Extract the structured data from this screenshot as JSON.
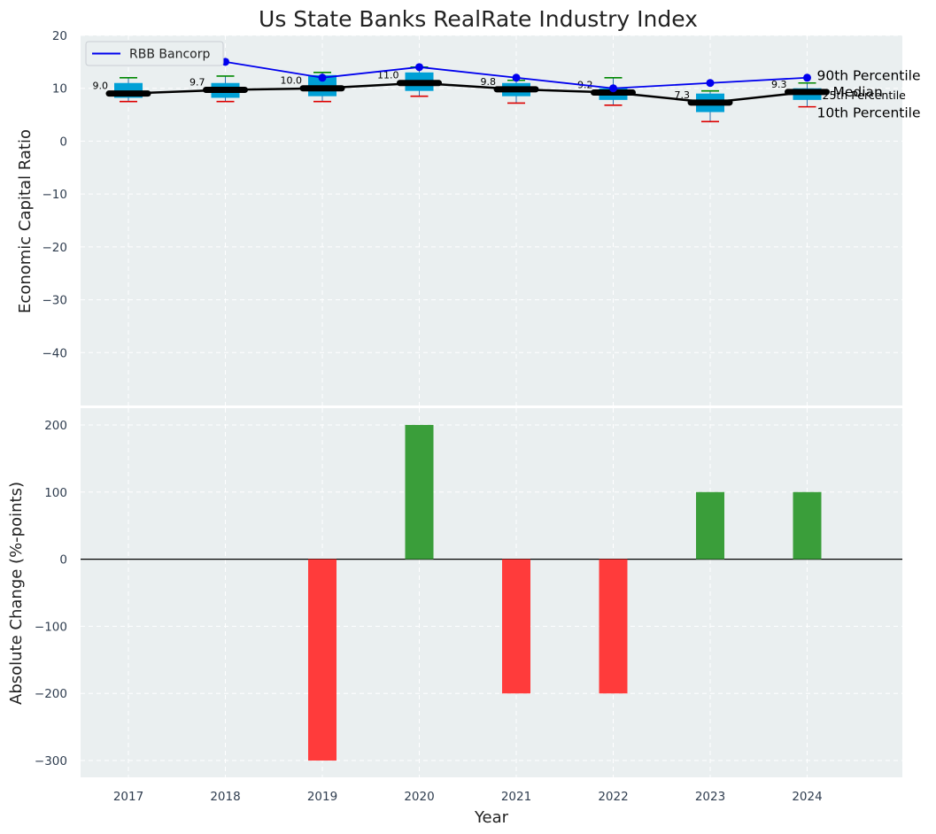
{
  "chart_data": {
    "title": "Us State Banks RealRate Industry Index",
    "xlabel": "Year",
    "years": [
      "2017",
      "2018",
      "2019",
      "2020",
      "2021",
      "2022",
      "2023",
      "2024"
    ],
    "top": {
      "type": "box-line",
      "ylabel": "Economic Capital Ratio",
      "ylim": [
        -50,
        20
      ],
      "yticks": [
        20,
        10,
        0,
        -10,
        -20,
        -30,
        -40
      ],
      "median": [
        9.0,
        9.7,
        10.0,
        11.0,
        9.8,
        9.2,
        7.3,
        9.3
      ],
      "median_labels": [
        "9.0",
        "9.7",
        "10.0",
        "11.0",
        "9.8",
        "9.2",
        "7.3",
        "9.3"
      ],
      "p10": [
        7.5,
        7.5,
        7.5,
        8.5,
        7.2,
        6.8,
        3.7,
        6.5
      ],
      "p25": [
        8.2,
        8.2,
        8.5,
        9.5,
        8.5,
        7.8,
        5.5,
        7.8
      ],
      "p75": [
        11.0,
        11.0,
        12.5,
        13.0,
        11.0,
        10.0,
        9.0,
        10.0
      ],
      "p90": [
        12.0,
        12.3,
        13.0,
        14.0,
        11.5,
        12.0,
        9.5,
        11.0
      ],
      "rbb": [
        null,
        15.0,
        12.0,
        14.0,
        12.0,
        10.0,
        11.0,
        12.0
      ],
      "legend": "RBB Bancorp",
      "annotations": {
        "p90": "90th Percentile",
        "median": "Median",
        "p25": "25th Percentile",
        "p10": "10th Percentile"
      }
    },
    "bottom": {
      "type": "bar",
      "ylabel": "Absolute Change (%-points)",
      "ylim": [
        -325,
        225
      ],
      "yticks": [
        200,
        100,
        0,
        -100,
        -200,
        -300
      ],
      "values": [
        0,
        0,
        -300,
        200,
        -200,
        -200,
        100,
        100
      ]
    }
  },
  "colors": {
    "plot_bg": "#eaeff0",
    "box": "#00a0d6",
    "rbb_line": "#0000ee",
    "median_line": "#000000",
    "p90_cap": "#008800",
    "p10_cap": "#dd0000",
    "bar_pos": "#3a9e3a",
    "bar_neg": "#ff3b3b",
    "p25_text": "#00a0c0"
  }
}
